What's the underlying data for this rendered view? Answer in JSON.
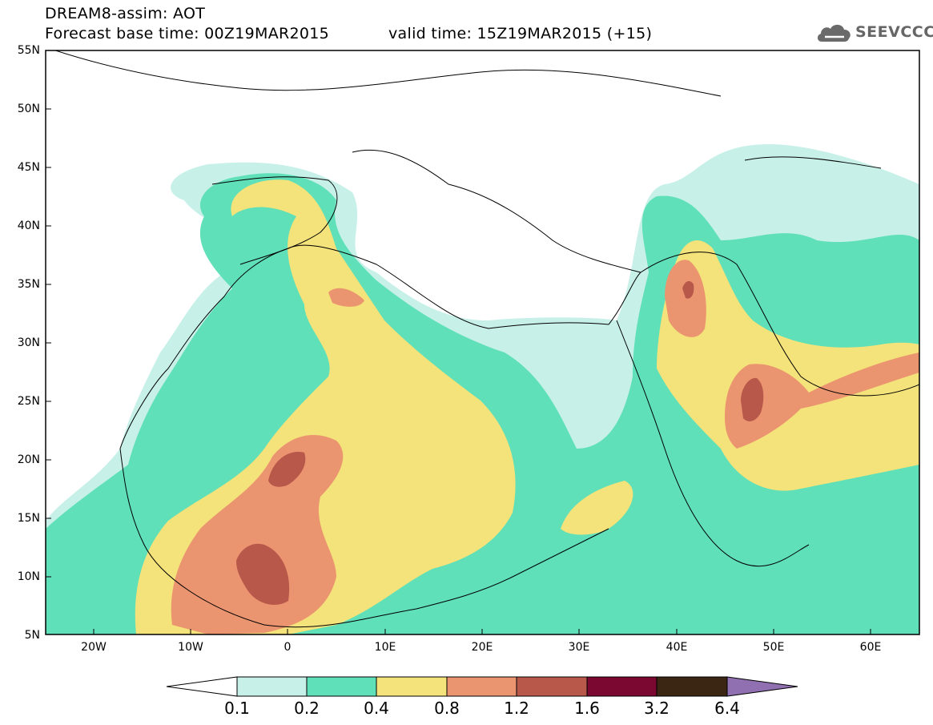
{
  "header": {
    "title_line1": "DREAM8-assim: AOT",
    "title_line2": "Forecast base time: 00Z19MAR2015",
    "valid_time": "valid time: 15Z19MAR2015 (+15)",
    "logo_text": "SEEVCCC"
  },
  "axes": {
    "lat_ticks": [
      "55N",
      "50N",
      "45N",
      "40N",
      "35N",
      "30N",
      "25N",
      "20N",
      "15N",
      "10N",
      "5N"
    ],
    "lon_ticks": [
      "20W",
      "10W",
      "0",
      "10E",
      "20E",
      "30E",
      "40E",
      "50E",
      "60E"
    ],
    "lon_range": [
      -25,
      65
    ],
    "lat_range": [
      5,
      55
    ]
  },
  "colorbar": {
    "ticks": [
      "0.1",
      "0.2",
      "0.4",
      "0.8",
      "1.2",
      "1.6",
      "3.2",
      "6.4"
    ],
    "colors": [
      "#c6f0e8",
      "#5fe0b8",
      "#f4e27a",
      "#eb9570",
      "#b8584a",
      "#7a0830",
      "#3b2614",
      "#9070b0"
    ],
    "below_color": "#ffffff"
  },
  "legend_colors": {
    "level_0_1": "#c6f0e8",
    "level_0_2": "#5fe0b8",
    "level_0_4": "#f4e27a",
    "level_0_8": "#eb9570",
    "level_1_2": "#b8584a",
    "level_1_6": "#7a0830"
  }
}
